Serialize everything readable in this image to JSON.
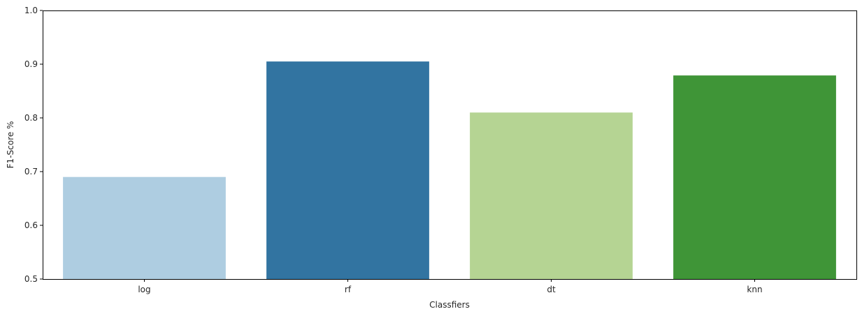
{
  "chart_data": {
    "type": "bar",
    "title": "",
    "xlabel": "Classfiers",
    "ylabel": "F1-Score %",
    "categories": [
      "log",
      "rf",
      "dt",
      "knn"
    ],
    "values": [
      0.69,
      0.905,
      0.81,
      0.879
    ],
    "colors": [
      "#aecde1",
      "#3274a1",
      "#b5d493",
      "#3f9537"
    ],
    "ylim": [
      0.5,
      1.0
    ],
    "yticks": [
      0.5,
      0.6,
      0.7,
      0.8,
      0.9,
      1.0
    ],
    "ytick_labels": [
      "0.5",
      "0.6",
      "0.7",
      "0.8",
      "0.9",
      "1.0"
    ],
    "grid": false,
    "legend": "none"
  }
}
